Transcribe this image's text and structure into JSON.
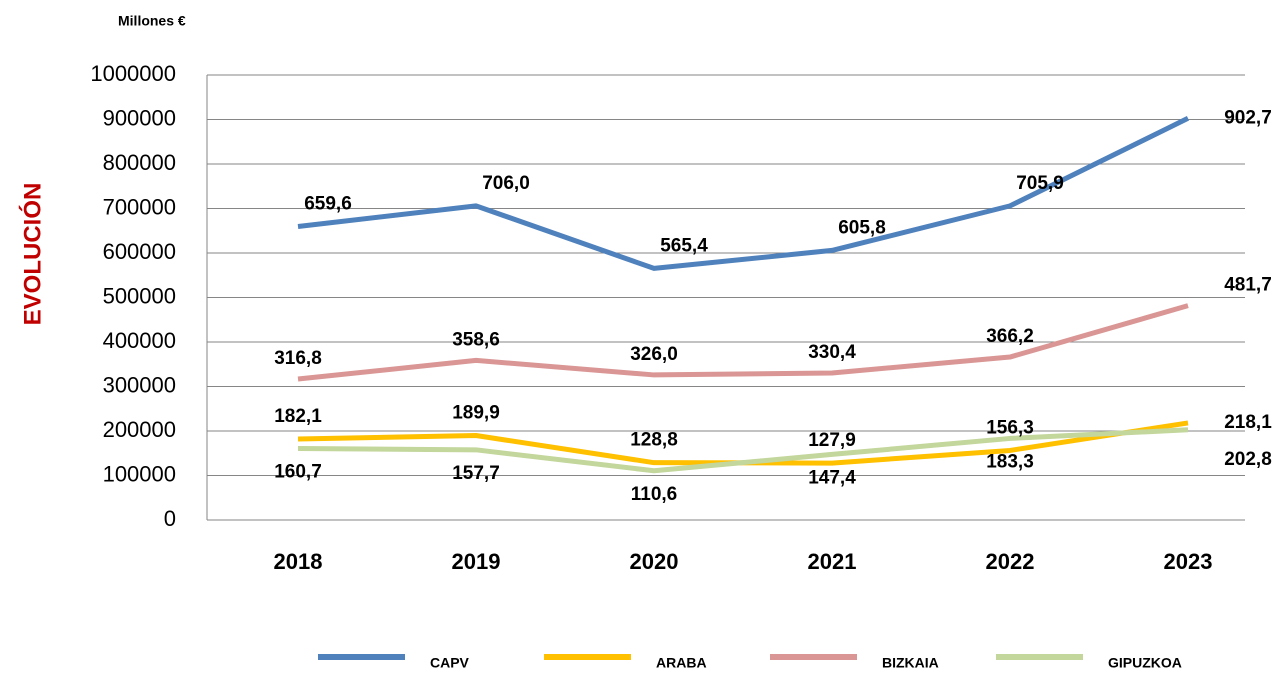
{
  "chart_data": {
    "type": "line",
    "unit_label": "Millones €",
    "y_axis_label": "EVOLUCIÓN",
    "categories": [
      "2018",
      "2019",
      "2020",
      "2021",
      "2022",
      "2023"
    ],
    "ylim": [
      0,
      1000000
    ],
    "yticks": [
      0,
      100000,
      200000,
      300000,
      400000,
      500000,
      600000,
      700000,
      800000,
      900000,
      1000000
    ],
    "grid": true,
    "legend": "bottom",
    "series": [
      {
        "name": "CAPV",
        "color": "#4f81bd",
        "values": [
          659600,
          706000,
          565400,
          605800,
          705900,
          902700
        ],
        "value_labels": [
          "659,6",
          "706,0",
          "565,4",
          "605,8",
          "705,9",
          "902,7"
        ]
      },
      {
        "name": "ARABA",
        "color": "#ffc000",
        "values": [
          182100,
          189900,
          128800,
          127900,
          156300,
          218100
        ],
        "value_labels": [
          "182,1",
          "189,9",
          "128,8",
          "127,9",
          "156,3",
          "218,1"
        ]
      },
      {
        "name": "BIZKAIA",
        "color": "#d99694",
        "values": [
          316800,
          358600,
          326000,
          330400,
          366200,
          481700
        ],
        "value_labels": [
          "316,8",
          "358,6",
          "326,0",
          "330,4",
          "366,2",
          "481,7"
        ]
      },
      {
        "name": "GIPUZKOA",
        "color": "#c3d69b",
        "values": [
          160700,
          157700,
          110600,
          147400,
          183300,
          202800
        ],
        "value_labels": [
          "160,7",
          "157,7",
          "110,6",
          "147,4",
          "183,3",
          "202,8"
        ]
      }
    ]
  }
}
